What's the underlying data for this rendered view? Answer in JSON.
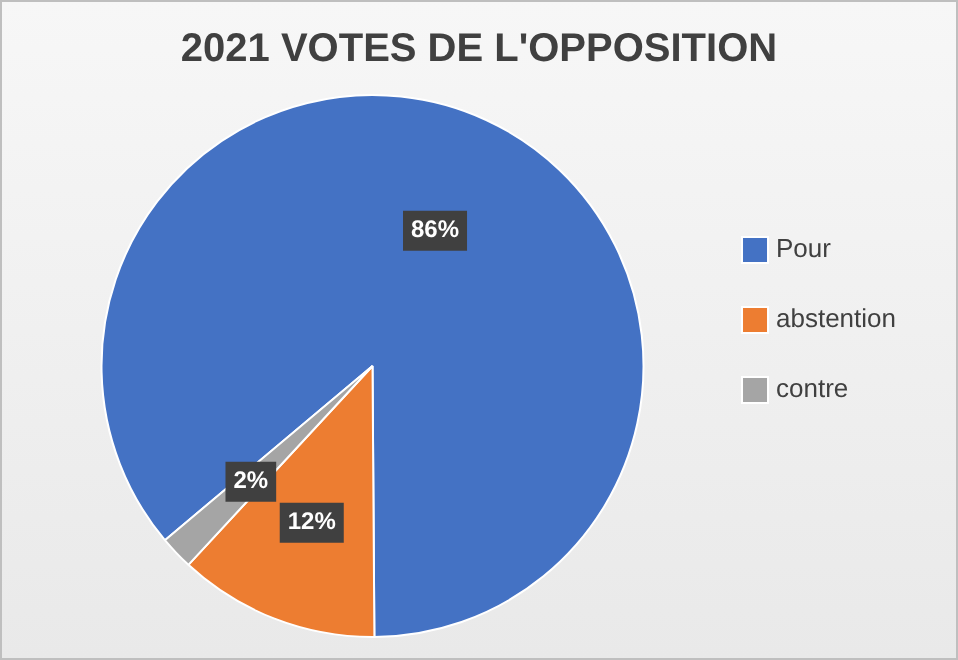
{
  "chart_data": {
    "type": "pie",
    "title": "2021 VOTES DE L'OPPOSITION",
    "categories": [
      "Pour",
      "abstention",
      "contre"
    ],
    "values": [
      86,
      12,
      2
    ],
    "colors": [
      "#4472c4",
      "#ed7d31",
      "#a5a5a5"
    ],
    "value_labels": [
      "86%",
      "12%",
      "2%"
    ],
    "legend": "right"
  }
}
